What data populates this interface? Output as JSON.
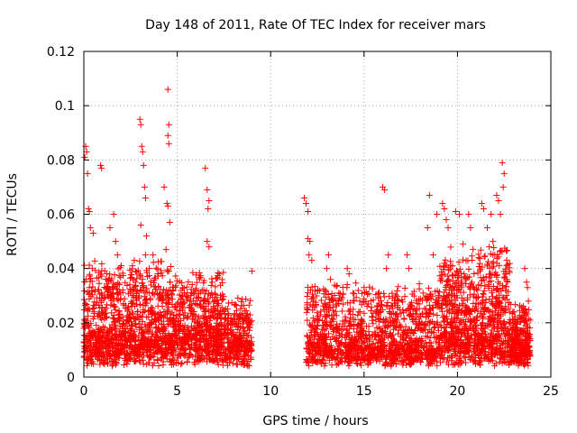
{
  "chart_data": {
    "type": "scatter",
    "title": "Day 148 of 2011, Rate Of TEC Index for receiver mars",
    "xlabel": "GPS time / hours",
    "ylabel": "ROTI / TECUs",
    "xlim": [
      0,
      25
    ],
    "ylim": [
      0,
      0.12
    ],
    "xticks": [
      "0",
      "5",
      "10",
      "15",
      "20",
      "25"
    ],
    "yticks": [
      "0",
      "0.02",
      "0.04",
      "0.06",
      "0.08",
      "0.1",
      "0.12"
    ],
    "grid": true,
    "marker": "+",
    "color": "#ff0000",
    "series": [
      {
        "name": "ROTI",
        "points": [
          [
            0.05,
            0.081
          ],
          [
            0.1,
            0.085
          ],
          [
            0.15,
            0.083
          ],
          [
            0.2,
            0.075
          ],
          [
            0.25,
            0.062
          ],
          [
            0.3,
            0.061
          ],
          [
            0.35,
            0.055
          ],
          [
            0.5,
            0.053
          ],
          [
            0.45,
            0.04
          ],
          [
            0.6,
            0.032
          ],
          [
            0.9,
            0.078
          ],
          [
            0.95,
            0.077
          ],
          [
            1.4,
            0.055
          ],
          [
            1.6,
            0.06
          ],
          [
            1.7,
            0.05
          ],
          [
            1.8,
            0.045
          ],
          [
            2.0,
            0.041
          ],
          [
            2.6,
            0.041
          ],
          [
            2.7,
            0.043
          ],
          [
            3.0,
            0.095
          ],
          [
            3.05,
            0.093
          ],
          [
            3.1,
            0.085
          ],
          [
            3.15,
            0.083
          ],
          [
            3.2,
            0.078
          ],
          [
            3.25,
            0.07
          ],
          [
            3.3,
            0.066
          ],
          [
            3.05,
            0.056
          ],
          [
            3.35,
            0.052
          ],
          [
            3.3,
            0.045
          ],
          [
            3.5,
            0.04
          ],
          [
            3.7,
            0.045
          ],
          [
            4.3,
            0.07
          ],
          [
            4.5,
            0.106
          ],
          [
            4.55,
            0.093
          ],
          [
            4.5,
            0.089
          ],
          [
            4.55,
            0.086
          ],
          [
            4.45,
            0.064
          ],
          [
            4.5,
            0.063
          ],
          [
            4.6,
            0.057
          ],
          [
            4.4,
            0.047
          ],
          [
            6.5,
            0.077
          ],
          [
            6.6,
            0.069
          ],
          [
            6.7,
            0.065
          ],
          [
            6.65,
            0.062
          ],
          [
            6.6,
            0.05
          ],
          [
            6.7,
            0.048
          ],
          [
            9.0,
            0.039
          ],
          [
            11.8,
            0.066
          ],
          [
            11.9,
            0.064
          ],
          [
            12.0,
            0.061
          ],
          [
            12.0,
            0.051
          ],
          [
            12.1,
            0.05
          ],
          [
            12.05,
            0.045
          ],
          [
            12.2,
            0.043
          ],
          [
            13.1,
            0.045
          ],
          [
            13.0,
            0.04
          ],
          [
            13.2,
            0.036
          ],
          [
            14.1,
            0.04
          ],
          [
            14.2,
            0.038
          ],
          [
            15.0,
            0.033
          ],
          [
            16.0,
            0.07
          ],
          [
            16.1,
            0.069
          ],
          [
            16.2,
            0.04
          ],
          [
            16.3,
            0.045
          ],
          [
            17.3,
            0.045
          ],
          [
            17.4,
            0.04
          ],
          [
            18.5,
            0.067
          ],
          [
            18.4,
            0.055
          ],
          [
            18.7,
            0.045
          ],
          [
            18.9,
            0.06
          ],
          [
            19.2,
            0.064
          ],
          [
            19.3,
            0.062
          ],
          [
            19.4,
            0.058
          ],
          [
            19.5,
            0.055
          ],
          [
            19.9,
            0.061
          ],
          [
            20.1,
            0.06
          ],
          [
            20.3,
            0.049
          ],
          [
            20.6,
            0.06
          ],
          [
            20.7,
            0.055
          ],
          [
            21.3,
            0.064
          ],
          [
            21.4,
            0.062
          ],
          [
            21.6,
            0.055
          ],
          [
            21.8,
            0.06
          ],
          [
            21.9,
            0.05
          ],
          [
            22.1,
            0.067
          ],
          [
            22.2,
            0.065
          ],
          [
            22.3,
            0.06
          ],
          [
            22.4,
            0.079
          ],
          [
            22.5,
            0.075
          ],
          [
            22.45,
            0.07
          ],
          [
            22.0,
            0.045
          ],
          [
            21.7,
            0.048
          ],
          [
            23.6,
            0.04
          ],
          [
            23.7,
            0.035
          ],
          [
            23.75,
            0.033
          ],
          [
            23.8,
            0.028
          ]
        ]
      }
    ]
  }
}
